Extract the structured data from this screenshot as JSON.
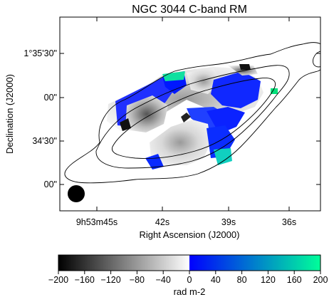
{
  "chart_data": {
    "type": "heatmap",
    "title": "NGC 3044   C-band   RM",
    "xlabel": "Right Ascension (J2000)",
    "ylabel": "Declination (J2000)",
    "x_ticks": [
      "9h53m45s",
      "42s",
      "39s",
      "36s"
    ],
    "y_ticks": [
      "1°35'30\"",
      "00\"",
      "34'30\"",
      "00\""
    ],
    "colorbar": {
      "label": "rad m-2",
      "range": [
        -200,
        200
      ],
      "ticks": [
        "−200",
        "−160",
        "−120",
        "−80",
        "−40",
        "0",
        "40",
        "80",
        "120",
        "160",
        "200"
      ],
      "colormap": [
        "#000000",
        "#ffffff",
        "#0000ff",
        "#00ff99"
      ]
    },
    "contour_levels_shown": 3,
    "beam": "filled circle, lower-left"
  }
}
